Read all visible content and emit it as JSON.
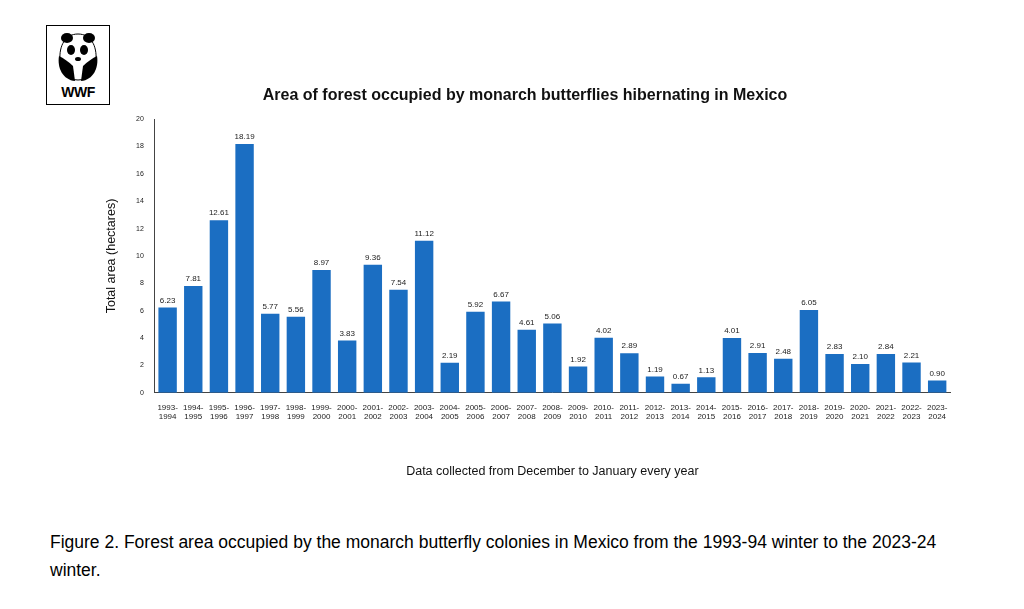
{
  "logo": {
    "text": "WWF"
  },
  "caption": "Figure 2. Forest area occupied by the monarch butterfly colonies in Mexico from the 1993-94 winter to the 2023-24 winter.",
  "chart_data": {
    "type": "bar",
    "title": "Area of forest occupied by monarch butterflies hibernating in Mexico",
    "x_label": "Data collected from December to January every year",
    "y_label": "Total area (hectares)",
    "categories": [
      "1993-1994",
      "1994-1995",
      "1995-1996",
      "1996-1997",
      "1997-1998",
      "1998-1999",
      "1999-2000",
      "2000-2001",
      "2001-2002",
      "2002-2003",
      "2003-2004",
      "2004-2005",
      "2005-2006",
      "2006-2007",
      "2007-2008",
      "2008-2009",
      "2009-2010",
      "2010-2011",
      "2011-2012",
      "2012-2013",
      "2013-2014",
      "2014-2015",
      "2015-2016",
      "2016-2017",
      "2017-2018",
      "2018-2019",
      "2019-2020",
      "2020-2021",
      "2021-2022",
      "2022-2023",
      "2023-2024"
    ],
    "values": [
      6.23,
      7.81,
      12.61,
      18.19,
      5.77,
      5.56,
      8.97,
      3.83,
      9.36,
      7.54,
      11.12,
      2.19,
      5.92,
      6.67,
      4.61,
      5.06,
      1.92,
      4.02,
      2.89,
      1.19,
      0.67,
      1.13,
      4.01,
      2.91,
      2.48,
      6.05,
      2.83,
      2.1,
      2.84,
      2.21,
      0.9
    ],
    "value_labels": [
      "6.23",
      "7.81",
      "12.61",
      "18.19",
      "5.77",
      "5.56",
      "8.97",
      "3.83",
      "9.36",
      "7.54",
      "11.12",
      "2.19",
      "5.92",
      "6.67",
      "4.61",
      "5.06",
      "1.92",
      "4.02",
      "2.89",
      "1.19",
      "0.67",
      "1.13",
      "4.01",
      "2.91",
      "2.48",
      "6.05",
      "2.83",
      "2.10",
      "2.84",
      "2.21",
      "0.90"
    ],
    "color": "#1b6ec2",
    "ylim": [
      0,
      20
    ],
    "yticks": [
      0,
      2,
      4,
      6,
      8,
      10,
      12,
      14,
      16,
      18,
      20
    ],
    "grid": false,
    "data_labels": true
  }
}
